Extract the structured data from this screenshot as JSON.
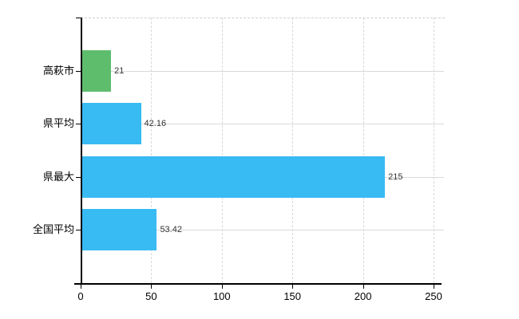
{
  "chart_data": {
    "type": "bar",
    "orientation": "horizontal",
    "title": "",
    "xlabel": "",
    "ylabel": "",
    "categories": [
      "高萩市",
      "県平均",
      "県最大",
      "全国平均"
    ],
    "values": [
      21,
      42.16,
      215,
      53.42
    ],
    "value_labels": [
      "21",
      "42.16",
      "215",
      "53.42"
    ],
    "bar_colors": [
      "#5ebd6d",
      "#38baf2",
      "#38baf2",
      "#38baf2"
    ],
    "xlim": [
      0,
      250
    ],
    "x_ticks": [
      0,
      50,
      100,
      150,
      200,
      250
    ],
    "x_tick_labels": [
      "0",
      "50",
      "100",
      "150",
      "200",
      "250"
    ],
    "grid": true,
    "legend": false
  },
  "colors": {
    "bar_highlight_green": "#5ebd6d",
    "bar_default_blue": "#38baf2",
    "axis": "#000000",
    "gridline": "#d9d9d9",
    "background": "#ffffff",
    "category_text": "#000000",
    "value_text": "#333333"
  }
}
